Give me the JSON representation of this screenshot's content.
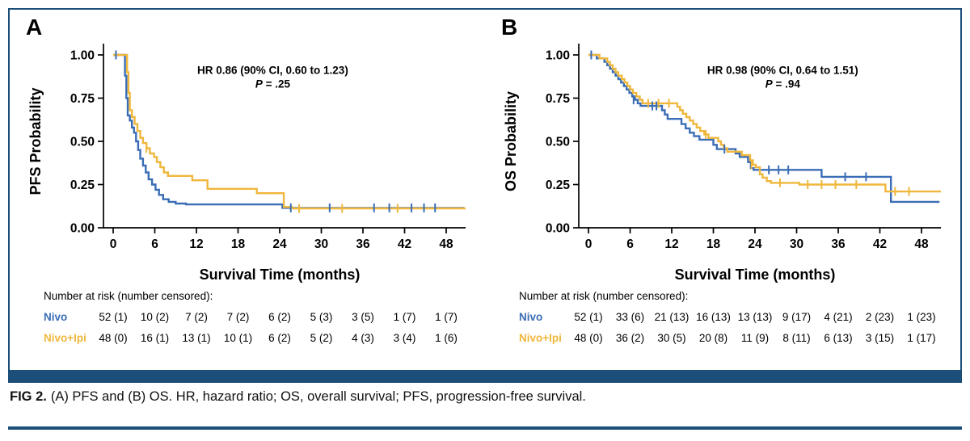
{
  "figure_caption": {
    "prefix": "FIG 2.",
    "text": "(A) PFS and (B) OS. HR, hazard ratio; OS, overall survival; PFS, progression-free survival."
  },
  "colors": {
    "navy": "#1B4E79",
    "nivo": "#3A6DB5",
    "nivo_ipi": "#EFB73C",
    "axis": "#000000"
  },
  "chart_data": [
    {
      "type": "line",
      "subtype": "kaplan-meier",
      "panel_label": "A",
      "ylabel": "PFS Probability",
      "xlabel": "Survival Time (months)",
      "xticks": [
        0,
        6,
        12,
        18,
        24,
        30,
        36,
        42,
        48
      ],
      "yticks": [
        "1.00",
        "0.75",
        "0.50",
        "0.25",
        "0.00"
      ],
      "xlim": [
        0,
        51
      ],
      "ylim": [
        0,
        1
      ],
      "grid": false,
      "legend": "none",
      "annotation": {
        "x_month": 23,
        "line1": "HR 0.86 (90% CI, 0.60 to 1.23)",
        "p_italic": "P",
        "p_rest": " = .25"
      },
      "series": [
        {
          "name": "Nivo",
          "color_key": "nivo",
          "steps": [
            [
              0,
              1.0
            ],
            [
              1.5,
              1.0
            ],
            [
              1.7,
              0.88
            ],
            [
              1.9,
              0.75
            ],
            [
              2.1,
              0.65
            ],
            [
              2.4,
              0.62
            ],
            [
              2.7,
              0.58
            ],
            [
              3.0,
              0.55
            ],
            [
              3.3,
              0.5
            ],
            [
              3.6,
              0.45
            ],
            [
              3.9,
              0.4
            ],
            [
              4.3,
              0.36
            ],
            [
              4.7,
              0.32
            ],
            [
              5.1,
              0.28
            ],
            [
              5.6,
              0.25
            ],
            [
              6.1,
              0.22
            ],
            [
              6.6,
              0.19
            ],
            [
              7.2,
              0.165
            ],
            [
              8.0,
              0.15
            ],
            [
              9.0,
              0.14
            ],
            [
              10.5,
              0.135
            ],
            [
              24.0,
              0.135
            ],
            [
              24.4,
              0.115
            ],
            [
              50.6,
              0.115
            ]
          ],
          "censors": [
            [
              0.4,
              1.0
            ],
            [
              25.6,
              0.115
            ],
            [
              31.2,
              0.115
            ],
            [
              37.6,
              0.115
            ],
            [
              39.8,
              0.115
            ],
            [
              43.0,
              0.115
            ],
            [
              44.8,
              0.115
            ],
            [
              46.4,
              0.115
            ]
          ]
        },
        {
          "name": "Nivo+Ipi",
          "color_key": "nivo_ipi",
          "steps": [
            [
              0,
              1.0
            ],
            [
              1.8,
              1.0
            ],
            [
              2.0,
              0.9
            ],
            [
              2.2,
              0.78
            ],
            [
              2.4,
              0.68
            ],
            [
              2.7,
              0.64
            ],
            [
              3.1,
              0.6
            ],
            [
              3.5,
              0.56
            ],
            [
              3.9,
              0.52
            ],
            [
              4.3,
              0.49
            ],
            [
              4.8,
              0.46
            ],
            [
              5.3,
              0.43
            ],
            [
              5.9,
              0.41
            ],
            [
              6.3,
              0.38
            ],
            [
              6.8,
              0.35
            ],
            [
              7.3,
              0.32
            ],
            [
              7.9,
              0.3
            ],
            [
              11.0,
              0.3
            ],
            [
              11.4,
              0.275
            ],
            [
              13.2,
              0.275
            ],
            [
              13.6,
              0.225
            ],
            [
              20.3,
              0.225
            ],
            [
              20.7,
              0.2
            ],
            [
              24.2,
              0.2
            ],
            [
              24.6,
              0.12
            ],
            [
              25.8,
              0.112
            ],
            [
              50.8,
              0.112
            ]
          ],
          "censors": [
            [
              4.8,
              0.46
            ],
            [
              26.8,
              0.112
            ],
            [
              33.0,
              0.112
            ],
            [
              41.0,
              0.112
            ]
          ]
        }
      ],
      "risk_table": {
        "header": "Number at risk (number censored):",
        "times": [
          0,
          6,
          12,
          18,
          24,
          30,
          36,
          42,
          48
        ],
        "rows": [
          {
            "label": "Nivo",
            "color_key": "nivo",
            "values": [
              "52 (1)",
              "10 (2)",
              "7 (2)",
              "7 (2)",
              "6 (2)",
              "5 (3)",
              "3 (5)",
              "1 (7)",
              "1 (7)"
            ]
          },
          {
            "label": "Nivo+Ipi",
            "color_key": "nivo_ipi",
            "values": [
              "48 (0)",
              "16 (1)",
              "13 (1)",
              "10 (1)",
              "6 (2)",
              "5 (2)",
              "4 (3)",
              "3 (4)",
              "1 (6)"
            ]
          }
        ]
      }
    },
    {
      "type": "line",
      "subtype": "kaplan-meier",
      "panel_label": "B",
      "ylabel": "OS Probability",
      "xlabel": "Survival Time (months)",
      "xticks": [
        0,
        6,
        12,
        18,
        24,
        30,
        36,
        42,
        48
      ],
      "yticks": [
        "1.00",
        "0.75",
        "0.50",
        "0.25",
        "0.00"
      ],
      "xlim": [
        0,
        51
      ],
      "ylim": [
        0,
        1
      ],
      "grid": false,
      "legend": "none",
      "annotation": {
        "x_month": 28,
        "line1": "HR 0.98 (90% CI, 0.64 to 1.51)",
        "p_italic": "P",
        "p_rest": " = .94"
      },
      "series": [
        {
          "name": "Nivo",
          "color_key": "nivo",
          "steps": [
            [
              0,
              1.0
            ],
            [
              1.0,
              1.0
            ],
            [
              1.2,
              0.98
            ],
            [
              2.0,
              0.98
            ],
            [
              2.3,
              0.96
            ],
            [
              2.7,
              0.94
            ],
            [
              3.1,
              0.92
            ],
            [
              3.5,
              0.9
            ],
            [
              3.9,
              0.88
            ],
            [
              4.3,
              0.86
            ],
            [
              4.7,
              0.84
            ],
            [
              5.1,
              0.82
            ],
            [
              5.5,
              0.8
            ],
            [
              5.9,
              0.78
            ],
            [
              6.3,
              0.76
            ],
            [
              6.7,
              0.74
            ],
            [
              7.1,
              0.72
            ],
            [
              7.5,
              0.705
            ],
            [
              10.2,
              0.705
            ],
            [
              10.6,
              0.68
            ],
            [
              11.0,
              0.655
            ],
            [
              11.4,
              0.63
            ],
            [
              13.0,
              0.63
            ],
            [
              13.4,
              0.6
            ],
            [
              14.0,
              0.575
            ],
            [
              14.6,
              0.55
            ],
            [
              15.2,
              0.53
            ],
            [
              16.0,
              0.51
            ],
            [
              17.6,
              0.51
            ],
            [
              18.0,
              0.48
            ],
            [
              18.5,
              0.455
            ],
            [
              20.8,
              0.455
            ],
            [
              21.2,
              0.43
            ],
            [
              21.8,
              0.41
            ],
            [
              22.6,
              0.41
            ],
            [
              23.0,
              0.38
            ],
            [
              23.4,
              0.345
            ],
            [
              23.8,
              0.335
            ],
            [
              33.2,
              0.335
            ],
            [
              33.6,
              0.295
            ],
            [
              43.2,
              0.295
            ],
            [
              43.6,
              0.15
            ],
            [
              50.6,
              0.15
            ]
          ],
          "censors": [
            [
              0.4,
              1.0
            ],
            [
              6.5,
              0.74
            ],
            [
              9.2,
              0.705
            ],
            [
              9.8,
              0.705
            ],
            [
              19.6,
              0.455
            ],
            [
              26.0,
              0.335
            ],
            [
              27.4,
              0.335
            ],
            [
              28.8,
              0.335
            ],
            [
              37.0,
              0.295
            ],
            [
              40.0,
              0.295
            ]
          ]
        },
        {
          "name": "Nivo+Ipi",
          "color_key": "nivo_ipi",
          "steps": [
            [
              0,
              1.0
            ],
            [
              1.4,
              1.0
            ],
            [
              1.6,
              0.98
            ],
            [
              2.4,
              0.98
            ],
            [
              2.7,
              0.96
            ],
            [
              3.1,
              0.94
            ],
            [
              3.5,
              0.92
            ],
            [
              3.9,
              0.9
            ],
            [
              4.3,
              0.88
            ],
            [
              4.8,
              0.86
            ],
            [
              5.2,
              0.84
            ],
            [
              5.6,
              0.82
            ],
            [
              6.0,
              0.8
            ],
            [
              6.4,
              0.78
            ],
            [
              6.9,
              0.76
            ],
            [
              7.4,
              0.74
            ],
            [
              7.8,
              0.72
            ],
            [
              12.4,
              0.72
            ],
            [
              12.8,
              0.7
            ],
            [
              13.2,
              0.68
            ],
            [
              13.6,
              0.66
            ],
            [
              14.1,
              0.64
            ],
            [
              14.6,
              0.62
            ],
            [
              15.1,
              0.6
            ],
            [
              15.6,
              0.58
            ],
            [
              16.1,
              0.56
            ],
            [
              16.7,
              0.54
            ],
            [
              17.3,
              0.52
            ],
            [
              18.3,
              0.52
            ],
            [
              18.7,
              0.5
            ],
            [
              19.1,
              0.48
            ],
            [
              19.5,
              0.46
            ],
            [
              20.0,
              0.44
            ],
            [
              21.7,
              0.44
            ],
            [
              22.1,
              0.42
            ],
            [
              22.9,
              0.42
            ],
            [
              23.3,
              0.39
            ],
            [
              23.7,
              0.365
            ],
            [
              24.1,
              0.35
            ],
            [
              24.7,
              0.31
            ],
            [
              25.1,
              0.29
            ],
            [
              25.7,
              0.27
            ],
            [
              26.3,
              0.26
            ],
            [
              30.0,
              0.26
            ],
            [
              30.4,
              0.25
            ],
            [
              42.4,
              0.25
            ],
            [
              42.8,
              0.21
            ],
            [
              50.8,
              0.21
            ]
          ],
          "censors": [
            [
              8.6,
              0.72
            ],
            [
              10.1,
              0.72
            ],
            [
              11.6,
              0.72
            ],
            [
              16.9,
              0.54
            ],
            [
              23.5,
              0.365
            ],
            [
              27.6,
              0.26
            ],
            [
              31.6,
              0.25
            ],
            [
              33.6,
              0.25
            ],
            [
              35.6,
              0.25
            ],
            [
              38.6,
              0.25
            ],
            [
              44.2,
              0.21
            ],
            [
              46.2,
              0.21
            ]
          ]
        }
      ],
      "risk_table": {
        "header": "Number at risk (number censored):",
        "times": [
          0,
          6,
          12,
          18,
          24,
          30,
          36,
          42,
          48
        ],
        "rows": [
          {
            "label": "Nivo",
            "color_key": "nivo",
            "values": [
              "52 (1)",
              "33 (6)",
              "21 (13)",
              "16 (13)",
              "13 (13)",
              "9 (17)",
              "4 (21)",
              "2 (23)",
              "1 (23)"
            ]
          },
          {
            "label": "Nivo+Ipi",
            "color_key": "nivo_ipi",
            "values": [
              "48 (0)",
              "36 (2)",
              "30 (5)",
              "20 (8)",
              "11 (9)",
              "8 (11)",
              "6 (13)",
              "3 (15)",
              "1 (17)"
            ]
          }
        ]
      }
    }
  ]
}
